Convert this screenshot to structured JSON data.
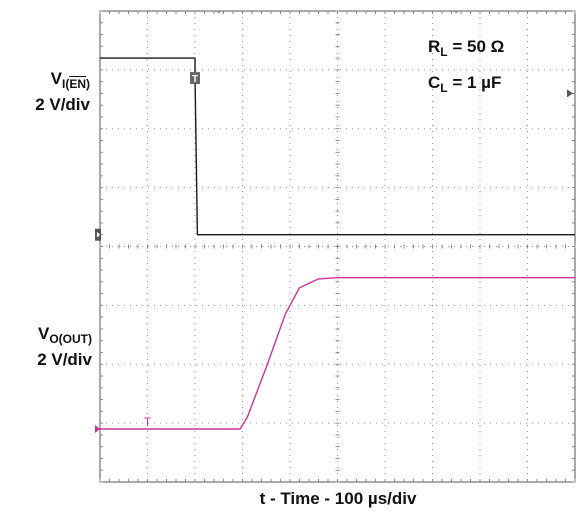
{
  "chart_data": {
    "type": "line",
    "time_scale": "100 µs/div",
    "x_divisions": 10,
    "y_divisions": 8,
    "series": [
      {
        "name": "V_I(EN)",
        "scale": "2 V/div",
        "color": "#1a1a1a",
        "x_div": [
          0,
          2.0,
          2.0,
          2.05,
          10
        ],
        "y_div": [
          7.2,
          7.2,
          6.9,
          4.2,
          4.2
        ]
      },
      {
        "name": "V_O(OUT)",
        "scale": "2 V/div",
        "color": "#cc3399",
        "x_div": [
          0,
          2.95,
          3.1,
          3.5,
          3.9,
          4.2,
          4.6,
          5.0,
          10
        ],
        "y_div": [
          0.9,
          0.9,
          1.1,
          1.95,
          2.85,
          3.3,
          3.45,
          3.47,
          3.47
        ]
      }
    ],
    "annotations": {
      "rl": "50 Ω",
      "cl": "1 µF"
    },
    "xlabel": "t - Time - 100 µs/div"
  },
  "labels": {
    "v_ien_main": "V",
    "v_ien_sub_prefix": "I(",
    "v_ien_sub_over": "EN",
    "v_ien_sub_suffix": ")",
    "v_ien_scale": "2 V/div",
    "v_oout_main": "V",
    "v_oout_sub": "O(OUT)",
    "v_oout_scale": "2 V/div",
    "rl_main": "R",
    "rl_sub": "L",
    "rl_value": " = 50 Ω",
    "cl_main": "C",
    "cl_sub": "L",
    "cl_value": " = 1 µF",
    "xlabel": "t - Time - 100 µs/div",
    "trigger_marker": "T",
    "cursor_marker": "T"
  }
}
